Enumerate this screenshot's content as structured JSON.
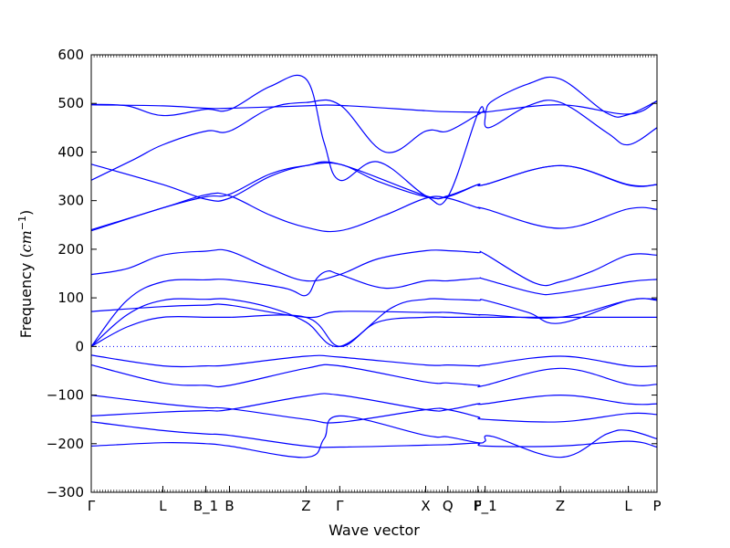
{
  "chart_data": {
    "type": "line",
    "title": "",
    "xlabel": "Wave vector",
    "ylabel_text": "Frequency (",
    "ylabel_math": "cm",
    "ylabel_exp": "−1",
    "ylabel_close": ")",
    "ylim": [
      -300,
      600
    ],
    "yticks": [
      -300,
      -200,
      -100,
      0,
      100,
      200,
      300,
      400,
      500,
      600
    ],
    "ytick_labels": [
      "−300",
      "−200",
      "−100",
      "0",
      "100",
      "200",
      "300",
      "400",
      "500",
      "600"
    ],
    "xlim": [
      0,
      7.9
    ],
    "xticks": [
      {
        "pos": 0.0,
        "label": "Γ"
      },
      {
        "pos": 1.0,
        "label": "L"
      },
      {
        "pos": 1.6,
        "label": "B_1"
      },
      {
        "pos": 1.93,
        "label": "B"
      },
      {
        "pos": 3.0,
        "label": "Z"
      },
      {
        "pos": 3.47,
        "label": "Γ"
      },
      {
        "pos": 4.67,
        "label": "X"
      },
      {
        "pos": 4.98,
        "label": "Q"
      },
      {
        "pos": 5.4,
        "label": "F"
      },
      {
        "pos": 5.5,
        "label": "P_1"
      },
      {
        "pos": 6.55,
        "label": "Z"
      },
      {
        "pos": 7.5,
        "label": "L"
      },
      {
        "pos": 7.9,
        "label": "P"
      }
    ],
    "zero_line": true,
    "line_color": "#0000ff",
    "series": [
      {
        "points": [
          [
            0,
            -205
          ],
          [
            1,
            -198
          ],
          [
            1.6,
            -200
          ],
          [
            1.93,
            -205
          ],
          [
            3,
            -228
          ],
          [
            3.25,
            -190
          ],
          [
            3.47,
            -143
          ],
          [
            4.67,
            -183
          ],
          [
            4.98,
            -186
          ],
          [
            5.4,
            -198
          ],
          [
            5.5,
            -195
          ],
          [
            5.6,
            -185
          ],
          [
            6.55,
            -228
          ],
          [
            7.2,
            -180
          ],
          [
            7.5,
            -173
          ],
          [
            7.9,
            -190
          ]
        ]
      },
      {
        "points": [
          [
            0,
            -155
          ],
          [
            1,
            -173
          ],
          [
            1.6,
            -180
          ],
          [
            1.93,
            -183
          ],
          [
            3,
            -205
          ],
          [
            3.47,
            -207
          ],
          [
            4.67,
            -203
          ],
          [
            4.98,
            -202
          ],
          [
            5.4,
            -199
          ],
          [
            5.5,
            -205
          ],
          [
            6.55,
            -205
          ],
          [
            7.5,
            -195
          ],
          [
            7.9,
            -207
          ]
        ]
      },
      {
        "points": [
          [
            0,
            -143
          ],
          [
            1,
            -135
          ],
          [
            1.6,
            -132
          ],
          [
            1.93,
            -130
          ],
          [
            3,
            -102
          ],
          [
            3.47,
            -100
          ],
          [
            4.67,
            -130
          ],
          [
            4.98,
            -130
          ],
          [
            5.4,
            -118
          ],
          [
            5.5,
            -118
          ],
          [
            6.55,
            -100
          ],
          [
            7.5,
            -118
          ],
          [
            7.9,
            -118
          ]
        ]
      },
      {
        "points": [
          [
            0,
            -100
          ],
          [
            1,
            -118
          ],
          [
            1.6,
            -126
          ],
          [
            1.93,
            -128
          ],
          [
            3,
            -150
          ],
          [
            3.47,
            -156
          ],
          [
            4.67,
            -130
          ],
          [
            4.98,
            -130
          ],
          [
            5.4,
            -145
          ],
          [
            5.5,
            -150
          ],
          [
            6.55,
            -155
          ],
          [
            7.5,
            -138
          ],
          [
            7.9,
            -140
          ]
        ]
      },
      {
        "points": [
          [
            0,
            -38
          ],
          [
            1,
            -75
          ],
          [
            1.6,
            -80
          ],
          [
            1.93,
            -80
          ],
          [
            3,
            -45
          ],
          [
            3.47,
            -40
          ],
          [
            4.67,
            -73
          ],
          [
            4.98,
            -75
          ],
          [
            5.4,
            -80
          ],
          [
            5.5,
            -80
          ],
          [
            6.55,
            -45
          ],
          [
            7.5,
            -78
          ],
          [
            7.9,
            -78
          ]
        ]
      },
      {
        "points": [
          [
            0,
            -18
          ],
          [
            1,
            -40
          ],
          [
            1.6,
            -40
          ],
          [
            1.93,
            -38
          ],
          [
            3,
            -20
          ],
          [
            3.47,
            -22
          ],
          [
            4.67,
            -38
          ],
          [
            4.98,
            -38
          ],
          [
            5.4,
            -40
          ],
          [
            5.5,
            -38
          ],
          [
            6.55,
            -20
          ],
          [
            7.5,
            -40
          ],
          [
            7.9,
            -40
          ]
        ]
      },
      {
        "points": [
          [
            0,
            0
          ],
          [
            0.5,
            40
          ],
          [
            1,
            60
          ],
          [
            1.6,
            60
          ],
          [
            1.93,
            60
          ],
          [
            3,
            60
          ],
          [
            3.47,
            0
          ],
          [
            4,
            50
          ],
          [
            4.67,
            60
          ],
          [
            4.98,
            60
          ],
          [
            5.4,
            60
          ],
          [
            5.5,
            60
          ],
          [
            6.55,
            60
          ],
          [
            7.5,
            60
          ],
          [
            7.9,
            60
          ]
        ]
      },
      {
        "points": [
          [
            0,
            0
          ],
          [
            0.5,
            65
          ],
          [
            1,
            95
          ],
          [
            1.6,
            97
          ],
          [
            1.93,
            97
          ],
          [
            2.5,
            80
          ],
          [
            3,
            50
          ],
          [
            3.47,
            0
          ],
          [
            4.2,
            80
          ],
          [
            4.67,
            97
          ],
          [
            4.98,
            97
          ],
          [
            5.4,
            95
          ],
          [
            5.5,
            95
          ],
          [
            6.1,
            70
          ],
          [
            6.55,
            48
          ],
          [
            7.5,
            95
          ],
          [
            7.9,
            95
          ]
        ]
      },
      {
        "points": [
          [
            0,
            72
          ],
          [
            1,
            82
          ],
          [
            1.6,
            85
          ],
          [
            1.93,
            85
          ],
          [
            3,
            60
          ],
          [
            3.47,
            72
          ],
          [
            4.67,
            70
          ],
          [
            4.98,
            70
          ],
          [
            5.4,
            65
          ],
          [
            5.5,
            65
          ],
          [
            6.55,
            60
          ],
          [
            7.5,
            95
          ],
          [
            7.9,
            97
          ]
        ]
      },
      {
        "points": [
          [
            0,
            0
          ],
          [
            0.5,
            95
          ],
          [
            1,
            133
          ],
          [
            1.6,
            137
          ],
          [
            1.93,
            137
          ],
          [
            2.7,
            120
          ],
          [
            3,
            105
          ],
          [
            3.15,
            140
          ],
          [
            3.3,
            155
          ],
          [
            3.47,
            148
          ],
          [
            4.1,
            120
          ],
          [
            4.67,
            135
          ],
          [
            4.98,
            135
          ],
          [
            5.4,
            140
          ],
          [
            5.5,
            138
          ],
          [
            6.2,
            110
          ],
          [
            6.55,
            110
          ],
          [
            7.5,
            133
          ],
          [
            7.9,
            138
          ]
        ]
      },
      {
        "points": [
          [
            0,
            148
          ],
          [
            0.5,
            160
          ],
          [
            1,
            188
          ],
          [
            1.6,
            196
          ],
          [
            1.93,
            196
          ],
          [
            2.5,
            160
          ],
          [
            3,
            135
          ],
          [
            3.47,
            148
          ],
          [
            4,
            180
          ],
          [
            4.67,
            197
          ],
          [
            4.98,
            197
          ],
          [
            5.4,
            193
          ],
          [
            5.5,
            190
          ],
          [
            6.2,
            130
          ],
          [
            6.55,
            133
          ],
          [
            7,
            155
          ],
          [
            7.5,
            188
          ],
          [
            7.9,
            188
          ]
        ]
      },
      {
        "points": [
          [
            0,
            238
          ],
          [
            1,
            285
          ],
          [
            1.6,
            308
          ],
          [
            1.93,
            313
          ],
          [
            2.5,
            355
          ],
          [
            3,
            372
          ],
          [
            3.47,
            375
          ],
          [
            4.67,
            310
          ],
          [
            4.98,
            310
          ],
          [
            5.4,
            333
          ],
          [
            5.5,
            333
          ],
          [
            6.55,
            372
          ],
          [
            7.5,
            332
          ],
          [
            7.9,
            333
          ]
        ]
      },
      {
        "points": [
          [
            0,
            240
          ],
          [
            1,
            285
          ],
          [
            1.6,
            312
          ],
          [
            1.93,
            310
          ],
          [
            2.5,
            270
          ],
          [
            3,
            245
          ],
          [
            3.47,
            238
          ],
          [
            4.1,
            270
          ],
          [
            4.67,
            305
          ],
          [
            4.98,
            305
          ],
          [
            5.4,
            285
          ],
          [
            5.5,
            283
          ],
          [
            6.55,
            243
          ],
          [
            7.5,
            283
          ],
          [
            7.9,
            282
          ]
        ]
      },
      {
        "points": [
          [
            0,
            375
          ],
          [
            1,
            333
          ],
          [
            1.6,
            303
          ],
          [
            1.93,
            305
          ],
          [
            2.5,
            350
          ],
          [
            3,
            372
          ],
          [
            3.47,
            375
          ],
          [
            4,
            340
          ],
          [
            4.67,
            308
          ],
          [
            4.98,
            308
          ],
          [
            5.4,
            333
          ],
          [
            5.5,
            333
          ],
          [
            6.55,
            372
          ],
          [
            7.5,
            333
          ],
          [
            7.9,
            333
          ]
        ]
      },
      {
        "points": [
          [
            0,
            342
          ],
          [
            0.6,
            385
          ],
          [
            1,
            415
          ],
          [
            1.6,
            443
          ],
          [
            1.93,
            443
          ],
          [
            2.5,
            490
          ],
          [
            3,
            502
          ],
          [
            3.47,
            497
          ],
          [
            4.1,
            400
          ],
          [
            4.67,
            443
          ],
          [
            4.98,
            443
          ],
          [
            5.4,
            477
          ],
          [
            5.5,
            482
          ],
          [
            5.55,
            450
          ],
          [
            6.1,
            495
          ],
          [
            6.55,
            502
          ],
          [
            7.2,
            440
          ],
          [
            7.5,
            415
          ],
          [
            7.9,
            450
          ]
        ]
      },
      {
        "points": [
          [
            0,
            498
          ],
          [
            0.5,
            495
          ],
          [
            1,
            475
          ],
          [
            1.6,
            488
          ],
          [
            1.93,
            487
          ],
          [
            2.5,
            535
          ],
          [
            3,
            550
          ],
          [
            3.25,
            420
          ],
          [
            3.47,
            342
          ],
          [
            4,
            380
          ],
          [
            4.67,
            310
          ],
          [
            4.98,
            308
          ],
          [
            5.4,
            480
          ],
          [
            5.5,
            482
          ],
          [
            5.6,
            505
          ],
          [
            6.1,
            540
          ],
          [
            6.55,
            550
          ],
          [
            7.2,
            480
          ],
          [
            7.5,
            477
          ],
          [
            7.9,
            505
          ]
        ]
      },
      {
        "points": [
          [
            0,
            497
          ],
          [
            1,
            495
          ],
          [
            1.6,
            490
          ],
          [
            1.93,
            490
          ],
          [
            3,
            495
          ],
          [
            3.47,
            496
          ],
          [
            4.67,
            485
          ],
          [
            4.98,
            483
          ],
          [
            5.4,
            482
          ],
          [
            5.5,
            482
          ],
          [
            6.55,
            497
          ],
          [
            7.5,
            478
          ],
          [
            7.9,
            505
          ]
        ]
      }
    ]
  }
}
